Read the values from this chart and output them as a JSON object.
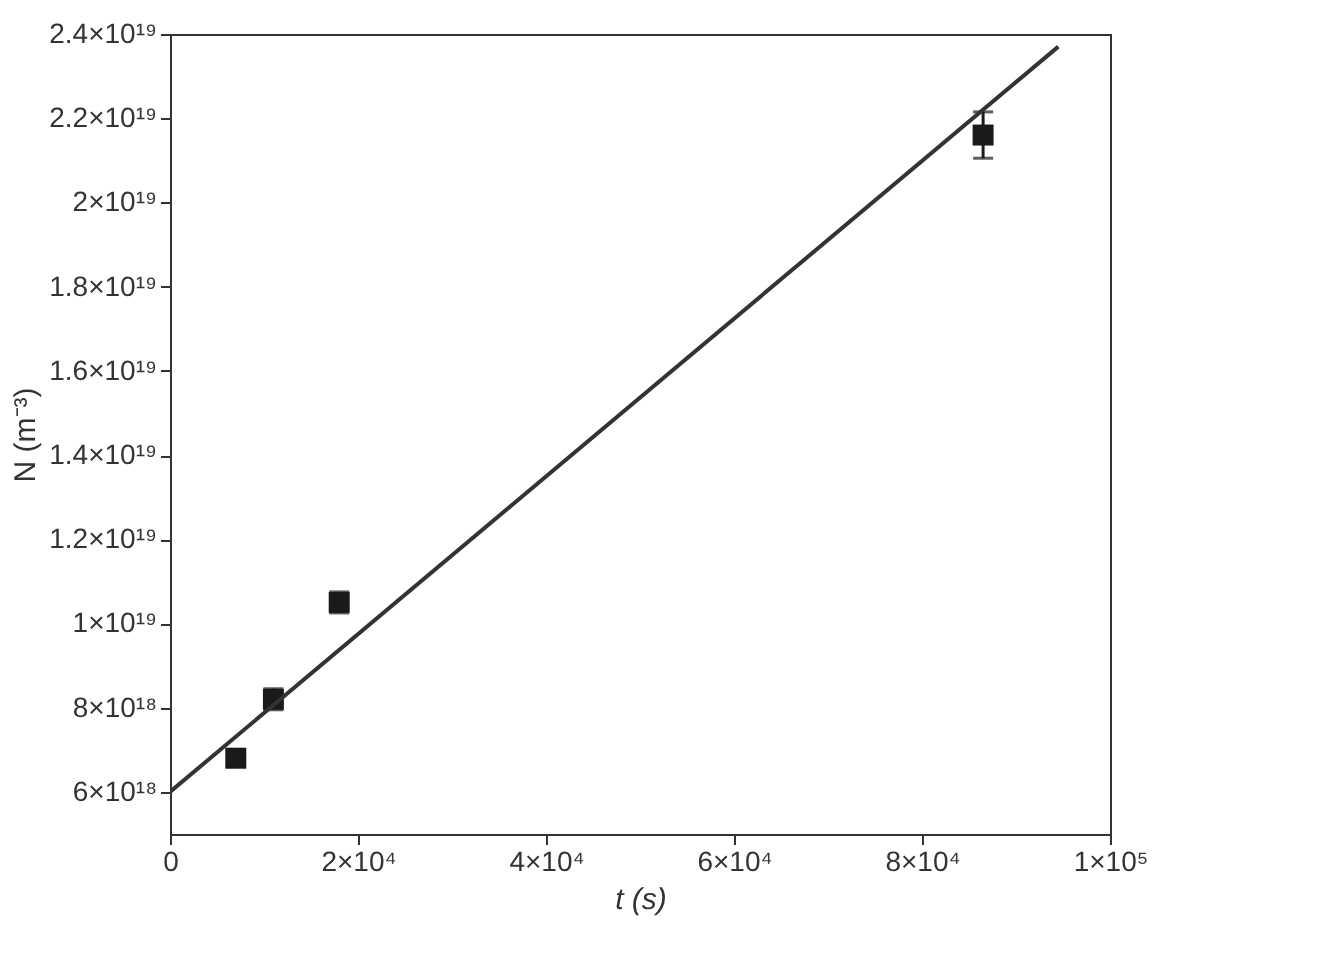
{
  "chart_data": {
    "type": "scatter",
    "xlabel": "t (s)",
    "ylabel": "N (m⁻³)",
    "grid": false,
    "xlim": [
      0,
      100000
    ],
    "ylim": [
      5e+18,
      2.4e+19
    ],
    "xticks": [
      0,
      {
        "value": 20000,
        "label": "2×10⁴"
      },
      {
        "value": 40000,
        "label": "4×10⁴"
      },
      {
        "value": 60000,
        "label": "6×10⁴"
      },
      {
        "value": 80000,
        "label": "8×10⁴"
      },
      {
        "value": 100000,
        "label": "1×10⁵"
      }
    ],
    "yticks": [
      {
        "value": 6e+18,
        "label": "6×10¹⁸"
      },
      {
        "value": 8e+18,
        "label": "8×10¹⁸"
      },
      {
        "value": 1e+19,
        "label": "1×10¹⁹"
      },
      {
        "value": 1.2e+19,
        "label": "1.2×10¹⁹"
      },
      {
        "value": 1.4e+19,
        "label": "1.4×10¹⁹"
      },
      {
        "value": 1.6e+19,
        "label": "1.6×10¹⁹"
      },
      {
        "value": 1.8e+19,
        "label": "1.8×10¹⁹"
      },
      {
        "value": 2e+19,
        "label": "2×10¹⁹"
      },
      {
        "value": 2.2e+19,
        "label": "2.2×10¹⁹"
      },
      {
        "value": 2.4e+19,
        "label": "2.4×10¹⁹"
      }
    ],
    "series": [
      {
        "marker": "square",
        "color": "#1a1a1a",
        "x": [
          7000,
          11000,
          18000,
          86500
        ],
        "values": [
          6.8e+18,
          8.2e+18,
          1.05e+19,
          2.16e+19
        ],
        "errors": [
          2e+17,
          2.5e+17,
          2.5e+17,
          5.5e+17
        ]
      },
      {
        "type": "line",
        "color": "#333333",
        "x": [
          0,
          94500
        ],
        "values": [
          6e+18,
          2.37e+19
        ]
      }
    ]
  }
}
